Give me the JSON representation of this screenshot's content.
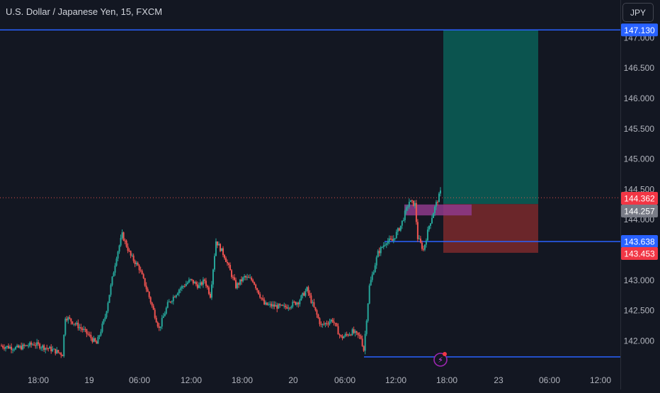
{
  "header": {
    "title": "U.S. Dollar / Japanese Yen, 15, FXCM"
  },
  "currency_button": {
    "label": "JPY"
  },
  "colors": {
    "background": "#131722",
    "up": "#26a69a",
    "down": "#ef5350",
    "hline": "#2962ff",
    "profit_zone": "#0b5752",
    "loss_zone": "#70272b",
    "highlight_zone": "#8e3a8b",
    "axis_text": "#b2b5be",
    "price_tag_blue": "#2962ff",
    "price_tag_red": "#f23645",
    "price_tag_gray": "#787b86"
  },
  "chart_data": {
    "type": "candlestick",
    "symbol": "U.S. Dollar / Japanese Yen, 15, FXCM",
    "ylim": [
      141.5,
      147.5
    ],
    "y_ticks": [
      "147.000",
      "146.500",
      "146.000",
      "145.500",
      "145.000",
      "144.500",
      "144.000",
      "143.500",
      "143.000",
      "142.500",
      "142.000"
    ],
    "x_ticks": [
      "18:00",
      "19",
      "06:00",
      "12:00",
      "18:00",
      "20",
      "06:00",
      "12:00",
      "18:00",
      "23",
      "06:00",
      "12:00"
    ],
    "horizontal_lines": [
      {
        "label": "147.130",
        "value": 147.13,
        "color": "#2962ff"
      },
      {
        "label": "143.638",
        "value": 143.638,
        "color": "#2962ff"
      },
      {
        "label": "141.736",
        "value": 141.736,
        "color": "#2962ff"
      }
    ],
    "current_price": {
      "label": "144.362",
      "value": 144.362
    },
    "price_tags": [
      {
        "label": "147.130",
        "value": 147.13,
        "color": "#2962ff"
      },
      {
        "label": "144.362",
        "value": 144.362,
        "color": "#f23645"
      },
      {
        "label": "144.257",
        "value": 144.257,
        "color": "#787b86"
      },
      {
        "label": "143.638",
        "value": 143.638,
        "color": "#2962ff"
      },
      {
        "label": "143.453",
        "value": 143.453,
        "color": "#f23645"
      }
    ],
    "position": {
      "entry": 144.257,
      "target": 147.13,
      "stop": 143.453
    },
    "highlight_zone": {
      "top": 144.25,
      "bottom": 144.07
    },
    "path_points": [
      {
        "t": 0,
        "p": 141.92
      },
      {
        "t": 6,
        "p": 141.88
      },
      {
        "t": 12,
        "p": 141.95
      },
      {
        "t": 18,
        "p": 141.86
      },
      {
        "t": 22,
        "p": 141.78
      },
      {
        "t": 23,
        "p": 142.4
      },
      {
        "t": 26,
        "p": 142.3
      },
      {
        "t": 30,
        "p": 142.15
      },
      {
        "t": 34,
        "p": 141.95
      },
      {
        "t": 37,
        "p": 142.4
      },
      {
        "t": 41,
        "p": 143.4
      },
      {
        "t": 43,
        "p": 143.75
      },
      {
        "t": 46,
        "p": 143.4
      },
      {
        "t": 49,
        "p": 143.2
      },
      {
        "t": 52,
        "p": 142.8
      },
      {
        "t": 56,
        "p": 142.2
      },
      {
        "t": 59,
        "p": 142.6
      },
      {
        "t": 63,
        "p": 142.85
      },
      {
        "t": 67,
        "p": 143.0
      },
      {
        "t": 70,
        "p": 142.9
      },
      {
        "t": 72,
        "p": 143.0
      },
      {
        "t": 74,
        "p": 142.75
      },
      {
        "t": 76,
        "p": 143.65
      },
      {
        "t": 79,
        "p": 143.4
      },
      {
        "t": 83,
        "p": 142.9
      },
      {
        "t": 86,
        "p": 143.05
      },
      {
        "t": 89,
        "p": 143.0
      },
      {
        "t": 93,
        "p": 142.6
      },
      {
        "t": 100,
        "p": 142.55
      },
      {
        "t": 105,
        "p": 142.65
      },
      {
        "t": 108,
        "p": 142.85
      },
      {
        "t": 110,
        "p": 142.6
      },
      {
        "t": 113,
        "p": 142.25
      },
      {
        "t": 117,
        "p": 142.35
      },
      {
        "t": 120,
        "p": 142.05
      },
      {
        "t": 124,
        "p": 142.15
      },
      {
        "t": 127,
        "p": 142.05
      },
      {
        "t": 128,
        "p": 141.85
      },
      {
        "t": 130,
        "p": 142.9
      },
      {
        "t": 133,
        "p": 143.45
      },
      {
        "t": 136,
        "p": 143.65
      },
      {
        "t": 138,
        "p": 143.65
      },
      {
        "t": 141,
        "p": 143.9
      },
      {
        "t": 144,
        "p": 144.3
      },
      {
        "t": 146,
        "p": 144.25
      },
      {
        "t": 147,
        "p": 143.7
      },
      {
        "t": 149,
        "p": 143.5
      },
      {
        "t": 151,
        "p": 143.9
      },
      {
        "t": 153,
        "p": 144.2
      },
      {
        "t": 155,
        "p": 144.45
      }
    ],
    "event_marker": {
      "symbol": "⚡"
    }
  }
}
